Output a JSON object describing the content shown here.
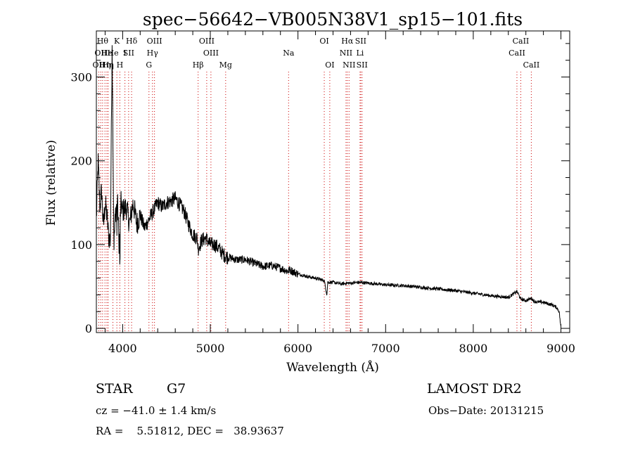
{
  "chart_data": {
    "type": "line",
    "title": "spec−56642−VB005N38V1_sp15−101.fits",
    "xlabel": "Wavelength (Å)",
    "ylabel": "Flux (relative)",
    "xlim": [
      3700,
      9100
    ],
    "ylim": [
      -5,
      355
    ],
    "xticks": [
      4000,
      5000,
      6000,
      7000,
      8000,
      9000
    ],
    "yticks": [
      0,
      100,
      200,
      300
    ],
    "grid": false,
    "line_color": "#000000",
    "marker_color": "#cc0000",
    "spectrum": {
      "name": "flux",
      "x": [
        3700,
        3720,
        3740,
        3760,
        3780,
        3800,
        3820,
        3840,
        3860,
        3880,
        3900,
        3920,
        3940,
        3960,
        3980,
        4000,
        4040,
        4080,
        4120,
        4160,
        4200,
        4250,
        4300,
        4350,
        4400,
        4450,
        4500,
        4550,
        4600,
        4650,
        4700,
        4750,
        4800,
        4850,
        4862,
        4900,
        4950,
        5000,
        5050,
        5100,
        5150,
        5200,
        5300,
        5400,
        5500,
        5600,
        5700,
        5800,
        5890,
        5900,
        6000,
        6100,
        6200,
        6300,
        6330,
        6340,
        6400,
        6500,
        6563,
        6600,
        6700,
        6800,
        7000,
        7200,
        7400,
        7600,
        7800,
        8000,
        8200,
        8400,
        8498,
        8542,
        8600,
        8662,
        8700,
        8800,
        8900,
        8950,
        8980,
        9000
      ],
      "y": [
        130,
        200,
        145,
        165,
        120,
        150,
        135,
        110,
        105,
        338,
        100,
        140,
        155,
        98,
        150,
        140,
        145,
        125,
        150,
        125,
        135,
        120,
        130,
        140,
        150,
        145,
        150,
        152,
        155,
        148,
        140,
        125,
        112,
        108,
        95,
        105,
        108,
        100,
        100,
        95,
        88,
        85,
        82,
        82,
        78,
        74,
        75,
        72,
        68,
        70,
        65,
        62,
        60,
        57,
        40,
        55,
        55,
        53,
        54,
        54,
        55,
        54,
        52,
        51,
        49,
        47,
        45,
        42,
        39,
        37,
        44,
        35,
        33,
        36,
        32,
        31,
        28,
        25,
        20,
        0
      ]
    },
    "line_markers": [
      {
        "wavelength": 3727,
        "label": "OII",
        "row": 3
      },
      {
        "wavelength": 3750,
        "label": "OII",
        "row": 2
      },
      {
        "wavelength": 3771,
        "label": "Hθ",
        "row": 1
      },
      {
        "wavelength": 3798,
        "label": "Hη",
        "row": 3
      },
      {
        "wavelength": 3820,
        "label": "He",
        "row": 2
      },
      {
        "wavelength": 3835,
        "label": "Hη",
        "row": 3
      },
      {
        "wavelength": 3889,
        "label": "He",
        "row": 2
      },
      {
        "wavelength": 3934,
        "label": "K",
        "row": 1
      },
      {
        "wavelength": 3968,
        "label": "H",
        "row": 3
      },
      {
        "wavelength": 4026,
        "label": "I",
        "row": 2
      },
      {
        "wavelength": 4068,
        "label": "SII",
        "row": 2
      },
      {
        "wavelength": 4102,
        "label": "Hδ",
        "row": 1
      },
      {
        "wavelength": 4300,
        "label": "G",
        "row": 3
      },
      {
        "wavelength": 4340,
        "label": "Hγ",
        "row": 2
      },
      {
        "wavelength": 4363,
        "label": "OIII",
        "row": 1
      },
      {
        "wavelength": 4861,
        "label": "Hβ",
        "row": 3
      },
      {
        "wavelength": 4959,
        "label": "OIII",
        "row": 1
      },
      {
        "wavelength": 5007,
        "label": "OIII",
        "row": 2
      },
      {
        "wavelength": 5175,
        "label": "Mg",
        "row": 3
      },
      {
        "wavelength": 5893,
        "label": "Na",
        "row": 2
      },
      {
        "wavelength": 6300,
        "label": "OI",
        "row": 1
      },
      {
        "wavelength": 6363,
        "label": "OI",
        "row": 3
      },
      {
        "wavelength": 6548,
        "label": "NII",
        "row": 2
      },
      {
        "wavelength": 6563,
        "label": "Hα",
        "row": 1
      },
      {
        "wavelength": 6583,
        "label": "NII",
        "row": 3
      },
      {
        "wavelength": 6708,
        "label": "Li",
        "row": 2
      },
      {
        "wavelength": 6716,
        "label": "SII",
        "row": 1
      },
      {
        "wavelength": 6731,
        "label": "SII",
        "row": 3
      },
      {
        "wavelength": 8498,
        "label": "CaII",
        "row": 2
      },
      {
        "wavelength": 8542,
        "label": "CaII",
        "row": 1
      },
      {
        "wavelength": 8662,
        "label": "CaII",
        "row": 3
      }
    ]
  },
  "info": {
    "object_class": "STAR",
    "subclass": "G7",
    "survey": "LAMOST DR2",
    "redshift": "cz = −41.0 ± 1.4 km/s",
    "obs_date": "Obs−Date: 20131215",
    "coords": "RA =    5.51812, DEC =   38.93637"
  }
}
